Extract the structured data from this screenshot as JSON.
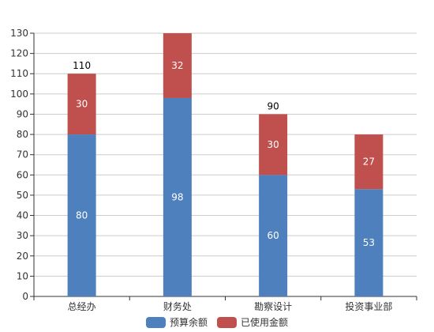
{
  "chart_data": {
    "type": "bar",
    "stacked": true,
    "categories": [
      "总经办",
      "财务处",
      "勘察设计",
      "投资事业部"
    ],
    "series": [
      {
        "name": "预算余额",
        "values": [
          80,
          98,
          60,
          53
        ],
        "color": "#4e80bd"
      },
      {
        "name": "已使用金额",
        "values": [
          30,
          32,
          30,
          27
        ],
        "color": "#c0504e"
      }
    ],
    "totals_labels": [
      {
        "category": "总经办",
        "text": "110"
      },
      {
        "category": "勘察设计",
        "text": "90"
      }
    ],
    "ylim": [
      0,
      130
    ],
    "ytick_step": 10,
    "grid": true,
    "legend": "bottom"
  }
}
